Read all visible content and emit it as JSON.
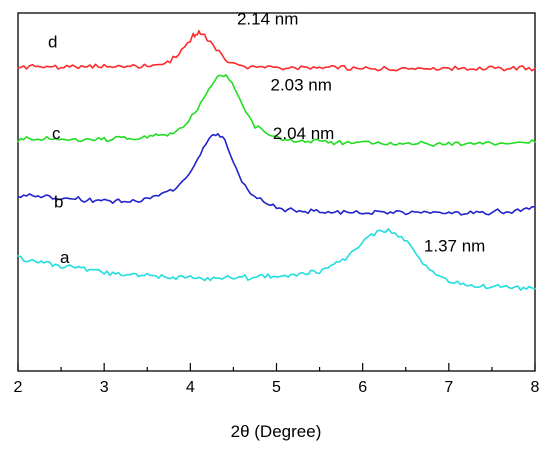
{
  "chart_data": {
    "type": "line",
    "xlabel": "2θ (Degree)",
    "ylabel": "",
    "xlim": [
      2,
      8
    ],
    "ylim": [
      0,
      1
    ],
    "grid": false,
    "legend": "none",
    "x_ticks": [
      "2",
      "3",
      "4",
      "5",
      "6",
      "7",
      "8"
    ],
    "series": [
      {
        "name": "d",
        "color": "#ff2a2a",
        "peak_label": "2.14 nm",
        "points": [
          [
            2.0,
            0.848
          ],
          [
            2.2,
            0.852
          ],
          [
            2.4,
            0.848
          ],
          [
            2.6,
            0.85
          ],
          [
            2.8,
            0.848
          ],
          [
            3.0,
            0.852
          ],
          [
            3.2,
            0.849
          ],
          [
            3.4,
            0.851
          ],
          [
            3.6,
            0.855
          ],
          [
            3.7,
            0.86
          ],
          [
            3.8,
            0.872
          ],
          [
            3.9,
            0.895
          ],
          [
            4.0,
            0.925
          ],
          [
            4.05,
            0.94
          ],
          [
            4.1,
            0.945
          ],
          [
            4.15,
            0.94
          ],
          [
            4.2,
            0.93
          ],
          [
            4.3,
            0.9
          ],
          [
            4.4,
            0.872
          ],
          [
            4.5,
            0.86
          ],
          [
            4.6,
            0.852
          ],
          [
            4.8,
            0.849
          ],
          [
            5.0,
            0.848
          ],
          [
            5.5,
            0.846
          ],
          [
            6.0,
            0.845
          ],
          [
            6.5,
            0.846
          ],
          [
            7.0,
            0.845
          ],
          [
            7.5,
            0.846
          ],
          [
            8.0,
            0.845
          ]
        ]
      },
      {
        "name": "c",
        "color": "#22dd22",
        "peak_label": "2.03 nm",
        "points": [
          [
            2.0,
            0.648
          ],
          [
            2.2,
            0.645
          ],
          [
            2.4,
            0.648
          ],
          [
            2.6,
            0.645
          ],
          [
            2.8,
            0.648
          ],
          [
            3.0,
            0.647
          ],
          [
            3.2,
            0.65
          ],
          [
            3.4,
            0.652
          ],
          [
            3.6,
            0.656
          ],
          [
            3.8,
            0.665
          ],
          [
            3.95,
            0.685
          ],
          [
            4.05,
            0.72
          ],
          [
            4.15,
            0.76
          ],
          [
            4.25,
            0.8
          ],
          [
            4.35,
            0.828
          ],
          [
            4.45,
            0.815
          ],
          [
            4.55,
            0.77
          ],
          [
            4.65,
            0.72
          ],
          [
            4.75,
            0.685
          ],
          [
            4.9,
            0.66
          ],
          [
            5.1,
            0.645
          ],
          [
            5.4,
            0.64
          ],
          [
            5.7,
            0.637
          ],
          [
            6.0,
            0.638
          ],
          [
            6.5,
            0.636
          ],
          [
            7.0,
            0.635
          ],
          [
            7.5,
            0.634
          ],
          [
            8.0,
            0.64
          ]
        ]
      },
      {
        "name": "b",
        "color": "#2323cc",
        "peak_label": "2.04 nm",
        "points": [
          [
            2.0,
            0.49
          ],
          [
            2.2,
            0.488
          ],
          [
            2.4,
            0.485
          ],
          [
            2.6,
            0.482
          ],
          [
            2.8,
            0.478
          ],
          [
            3.0,
            0.475
          ],
          [
            3.2,
            0.472
          ],
          [
            3.4,
            0.475
          ],
          [
            3.6,
            0.488
          ],
          [
            3.8,
            0.505
          ],
          [
            3.95,
            0.535
          ],
          [
            4.05,
            0.575
          ],
          [
            4.15,
            0.62
          ],
          [
            4.25,
            0.655
          ],
          [
            4.32,
            0.665
          ],
          [
            4.4,
            0.64
          ],
          [
            4.5,
            0.58
          ],
          [
            4.6,
            0.53
          ],
          [
            4.7,
            0.495
          ],
          [
            4.85,
            0.47
          ],
          [
            5.0,
            0.455
          ],
          [
            5.3,
            0.448
          ],
          [
            5.6,
            0.445
          ],
          [
            6.0,
            0.442
          ],
          [
            6.5,
            0.44
          ],
          [
            7.0,
            0.44
          ],
          [
            7.5,
            0.443
          ],
          [
            7.8,
            0.448
          ],
          [
            8.0,
            0.458
          ]
        ]
      },
      {
        "name": "a",
        "color": "#22dddd",
        "peak_label": "1.37 nm",
        "points": [
          [
            2.0,
            0.318
          ],
          [
            2.2,
            0.306
          ],
          [
            2.4,
            0.298
          ],
          [
            2.6,
            0.29
          ],
          [
            2.8,
            0.283
          ],
          [
            3.0,
            0.276
          ],
          [
            3.2,
            0.27
          ],
          [
            3.4,
            0.268
          ],
          [
            3.6,
            0.265
          ],
          [
            3.8,
            0.262
          ],
          [
            4.0,
            0.26
          ],
          [
            4.2,
            0.258
          ],
          [
            4.4,
            0.26
          ],
          [
            4.6,
            0.262
          ],
          [
            4.8,
            0.263
          ],
          [
            5.0,
            0.266
          ],
          [
            5.2,
            0.27
          ],
          [
            5.4,
            0.275
          ],
          [
            5.6,
            0.285
          ],
          [
            5.8,
            0.315
          ],
          [
            5.95,
            0.35
          ],
          [
            6.1,
            0.38
          ],
          [
            6.2,
            0.395
          ],
          [
            6.3,
            0.39
          ],
          [
            6.45,
            0.375
          ],
          [
            6.55,
            0.35
          ],
          [
            6.7,
            0.3
          ],
          [
            6.85,
            0.27
          ],
          [
            7.0,
            0.25
          ],
          [
            7.2,
            0.242
          ],
          [
            7.5,
            0.236
          ],
          [
            7.8,
            0.232
          ],
          [
            8.0,
            0.23
          ]
        ]
      }
    ]
  }
}
